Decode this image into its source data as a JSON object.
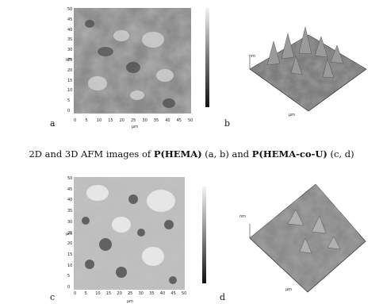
{
  "caption": {
    "prefix": "2D and 3D AFM images of ",
    "polymer1": "P(HEMA)",
    "mid1": " (a, b) and ",
    "polymer2": "P(HEMA-co-U)",
    "suffix": " (c, d)"
  },
  "panels": {
    "a": {
      "label": "a",
      "axis_unit": "µm",
      "x_ticks": [
        "0",
        "5",
        "10",
        "15",
        "20",
        "25",
        "30",
        "35",
        "40",
        "45",
        "50"
      ],
      "y_ticks": [
        "50",
        "45",
        "40",
        "35",
        "30",
        "25",
        "20",
        "15",
        "10",
        "5",
        "0"
      ]
    },
    "b": {
      "label": "b",
      "axis_unit": "µm",
      "z_label": "nm"
    },
    "c": {
      "label": "c",
      "axis_unit": "µm",
      "x_ticks": [
        "0",
        "5",
        "10",
        "15",
        "20",
        "25",
        "30",
        "35",
        "40",
        "45",
        "50"
      ],
      "y_ticks": [
        "50",
        "45",
        "40",
        "35",
        "30",
        "25",
        "20",
        "15",
        "10",
        "5",
        "0"
      ]
    },
    "d": {
      "label": "d",
      "axis_unit": "µm",
      "z_label": "nm"
    }
  }
}
